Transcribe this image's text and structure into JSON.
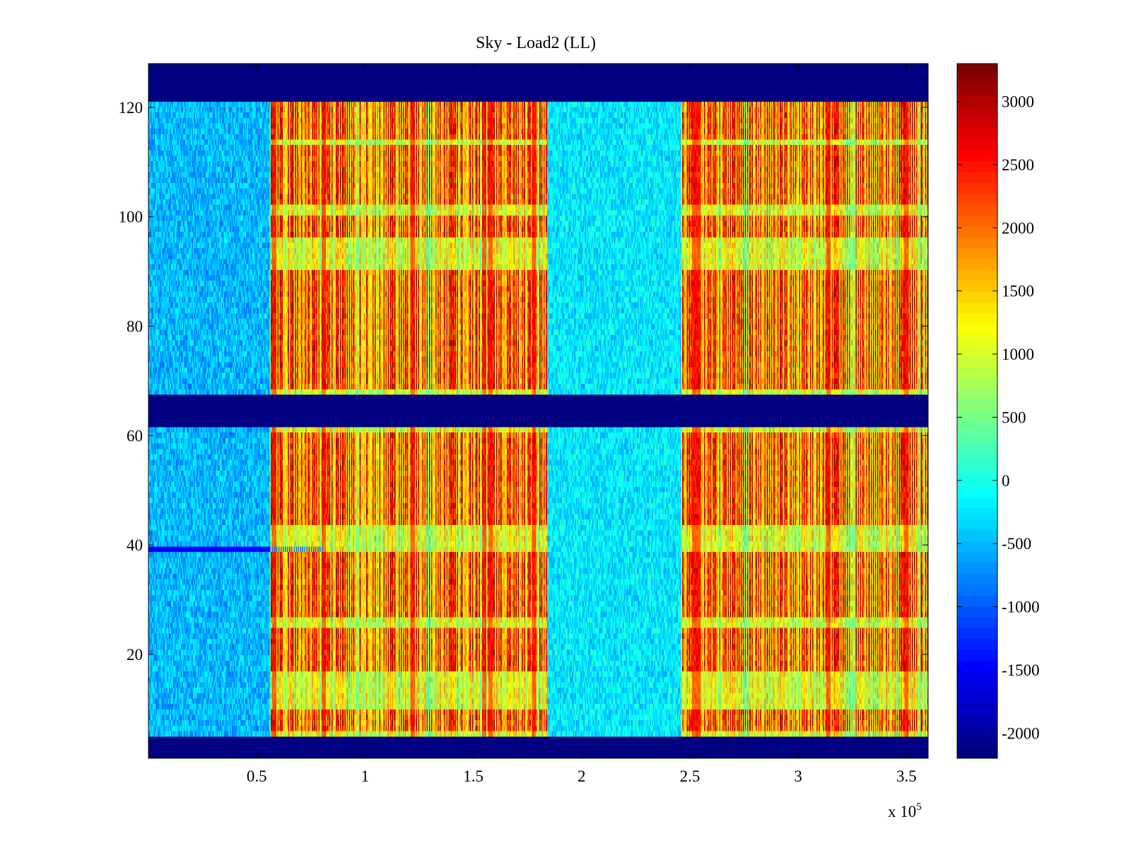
{
  "chart_data": {
    "type": "heatmap",
    "title": "Sky - Load2 (LL)",
    "xlabel": "",
    "ylabel": "",
    "x_multiplier_label": "x 10",
    "x_multiplier_exponent": "5",
    "xlim": [
      0,
      3.6
    ],
    "ylim": [
      1,
      128
    ],
    "xticks": [
      0.5,
      1,
      1.5,
      2,
      2.5,
      3,
      3.5
    ],
    "xtick_labels": [
      "0.5",
      "1",
      "1.5",
      "2",
      "2.5",
      "3",
      "3.5"
    ],
    "yticks": [
      20,
      40,
      60,
      80,
      100,
      120
    ],
    "ytick_labels": [
      "20",
      "40",
      "60",
      "80",
      "100",
      "120"
    ],
    "colorbar": {
      "colormap": "jet",
      "clim": [
        -2200,
        3300
      ],
      "ticks": [
        -2000,
        -1500,
        -1000,
        -500,
        0,
        500,
        1000,
        1500,
        2000,
        2500,
        3000
      ],
      "tick_labels": [
        "-2000",
        "-1500",
        "-1000",
        "-500",
        "0",
        "500",
        "1000",
        "1500",
        "2000",
        "2500",
        "3000"
      ]
    },
    "masked_rows": [
      [
        1,
        4
      ],
      [
        62,
        67
      ],
      [
        122,
        128
      ]
    ],
    "masked_value": -2200,
    "regions": [
      {
        "x_start": 0,
        "x_end": 0.56,
        "level": "low",
        "typical_value": -500
      },
      {
        "x_start": 0.56,
        "x_end": 1.84,
        "level": "high",
        "typical_value": 1500
      },
      {
        "x_start": 1.84,
        "x_end": 2.46,
        "level": "low",
        "typical_value": -300
      },
      {
        "x_start": 2.46,
        "x_end": 3.6,
        "level": "high",
        "typical_value": 1500
      }
    ],
    "bright_columns_x": [
      0.58,
      0.81,
      1.22,
      1.55,
      1.58,
      1.78,
      2.52,
      2.54,
      3.14,
      3.5
    ],
    "hot_row_bands": [
      [
        6,
        9
      ],
      [
        17,
        24
      ],
      [
        27,
        38
      ],
      [
        44,
        60
      ],
      [
        69,
        90
      ],
      [
        97,
        100
      ],
      [
        103,
        113
      ],
      [
        115,
        121
      ]
    ],
    "warm_row_bands": [
      [
        12,
        16
      ],
      [
        41,
        43
      ],
      [
        91,
        96
      ],
      [
        101,
        102
      ]
    ],
    "dark_line": {
      "row": 39,
      "x_start": 0,
      "x_end": 0.81,
      "value": -1500
    }
  }
}
